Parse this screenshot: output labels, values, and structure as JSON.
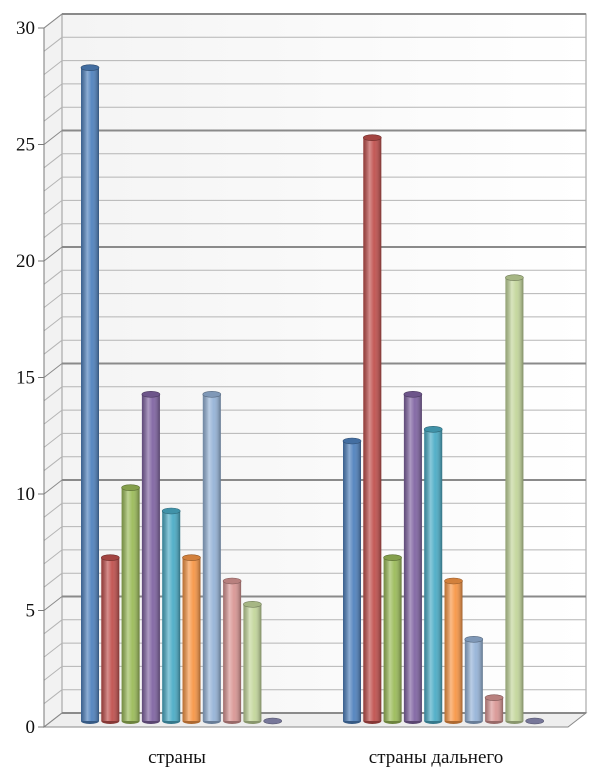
{
  "chart_data": {
    "type": "bar",
    "categories": [
      "страны",
      "страны дальнего"
    ],
    "series": [
      {
        "values": [
          28,
          12
        ],
        "color": "#4f81bd"
      },
      {
        "values": [
          7,
          25
        ],
        "color": "#c0504d"
      },
      {
        "values": [
          10,
          7
        ],
        "color": "#9bbb59"
      },
      {
        "values": [
          14,
          14
        ],
        "color": "#8064a2"
      },
      {
        "values": [
          9,
          12.5
        ],
        "color": "#4bacc6"
      },
      {
        "values": [
          7,
          6
        ],
        "color": "#f79646"
      },
      {
        "values": [
          14,
          3.5
        ],
        "color": "#95b3d7"
      },
      {
        "values": [
          6,
          1
        ],
        "color": "#d99694"
      },
      {
        "values": [
          5,
          19
        ],
        "color": "#c3d69b"
      },
      {
        "values": [
          0,
          0
        ],
        "color": "#8c8cb4"
      }
    ],
    "yticks": [
      0,
      5,
      10,
      15,
      20,
      25,
      30
    ],
    "ylim": [
      0,
      30
    ],
    "grid": true,
    "style": "3d-cylinder"
  }
}
